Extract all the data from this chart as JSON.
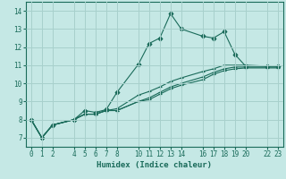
{
  "title": "",
  "xlabel": "Humidex (Indice chaleur)",
  "ylabel": "",
  "background_color": "#c5e8e5",
  "grid_color": "#a8d0cc",
  "line_color": "#1a6b5a",
  "xlim": [
    -0.5,
    23.5
  ],
  "ylim": [
    6.5,
    14.5
  ],
  "xticks": [
    0,
    1,
    2,
    4,
    5,
    6,
    7,
    8,
    10,
    11,
    12,
    13,
    14,
    16,
    17,
    18,
    19,
    20,
    22,
    23
  ],
  "yticks": [
    7,
    8,
    9,
    10,
    11,
    12,
    13,
    14
  ],
  "lines": [
    {
      "x": [
        0,
        1,
        2,
        4,
        5,
        6,
        7,
        8,
        10,
        11,
        12,
        13,
        14,
        16,
        17,
        18,
        19,
        20,
        22,
        23
      ],
      "y": [
        8.0,
        7.0,
        7.7,
        8.0,
        8.5,
        8.4,
        8.55,
        9.5,
        11.05,
        12.2,
        12.5,
        13.85,
        13.0,
        12.6,
        12.5,
        12.85,
        11.6,
        10.95,
        10.95,
        10.95
      ],
      "marker": "D",
      "ms": 2.5
    },
    {
      "x": [
        0,
        1,
        2,
        4,
        5,
        6,
        7,
        8,
        10,
        11,
        12,
        13,
        14,
        16,
        17,
        18,
        19,
        20,
        22,
        23
      ],
      "y": [
        8.0,
        7.0,
        7.7,
        8.0,
        8.3,
        8.3,
        8.5,
        8.6,
        9.35,
        9.55,
        9.8,
        10.1,
        10.3,
        10.65,
        10.8,
        11.0,
        11.0,
        11.0,
        10.95,
        10.95
      ],
      "marker": "+",
      "ms": 3.5
    },
    {
      "x": [
        0,
        1,
        2,
        4,
        5,
        6,
        7,
        8,
        10,
        11,
        12,
        13,
        14,
        16,
        17,
        18,
        19,
        20,
        22,
        23
      ],
      "y": [
        8.0,
        7.0,
        7.7,
        8.0,
        8.3,
        8.3,
        8.5,
        8.5,
        9.0,
        9.2,
        9.5,
        9.8,
        10.0,
        10.35,
        10.6,
        10.8,
        10.9,
        10.9,
        10.9,
        10.9
      ],
      "marker": "+",
      "ms": 3.5
    },
    {
      "x": [
        0,
        1,
        2,
        4,
        5,
        6,
        7,
        8,
        10,
        11,
        12,
        13,
        14,
        16,
        17,
        18,
        19,
        20,
        22,
        23
      ],
      "y": [
        8.0,
        7.0,
        7.7,
        8.0,
        8.3,
        8.3,
        8.5,
        8.5,
        9.0,
        9.1,
        9.4,
        9.7,
        9.9,
        10.2,
        10.5,
        10.7,
        10.8,
        10.85,
        10.85,
        10.85
      ],
      "marker": "+",
      "ms": 3.5
    }
  ]
}
